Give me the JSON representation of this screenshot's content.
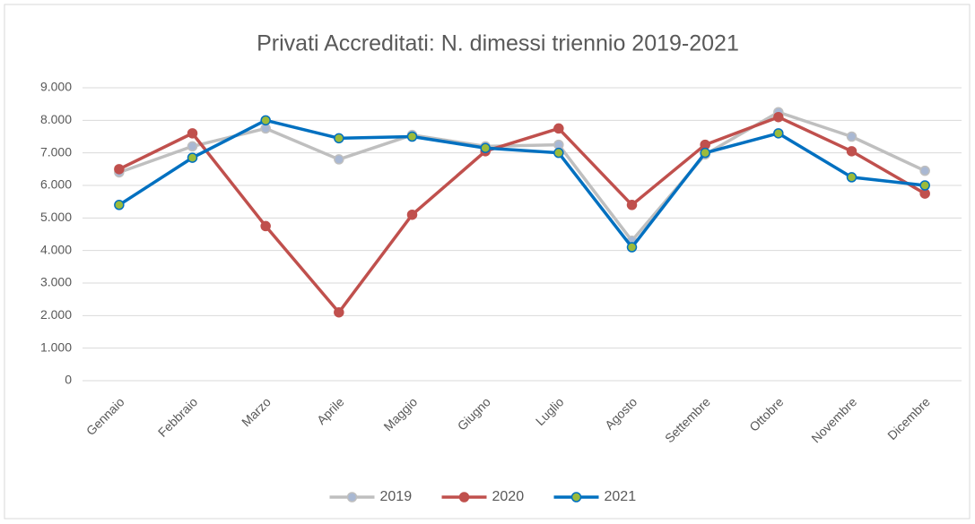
{
  "chart_data": {
    "type": "line",
    "title": "Privati Accreditati: N. dimessi triennio 2019-2021",
    "categories": [
      "Gennaio",
      "Febbraio",
      "Marzo",
      "Aprile",
      "Maggio",
      "Giugno",
      "Luglio",
      "Agosto",
      "Settembre",
      "Ottobre",
      "Novembre",
      "Dicembre"
    ],
    "series": [
      {
        "name": "2019",
        "color": "#bfbfbf",
        "marker_color": "#a9b8d3",
        "values": [
          6400,
          7200,
          7750,
          6800,
          7550,
          7200,
          7250,
          4300,
          6950,
          8250,
          7500,
          6450
        ]
      },
      {
        "name": "2020",
        "color": "#c0504d",
        "marker_color": "#c0504d",
        "values": [
          6500,
          7600,
          4750,
          2100,
          5100,
          7050,
          7750,
          5400,
          7250,
          8100,
          7050,
          5750
        ]
      },
      {
        "name": "2021",
        "color": "#0070c0",
        "marker_color": "#9bbb3b",
        "values": [
          5400,
          6850,
          8000,
          7450,
          7500,
          7150,
          7000,
          4100,
          7000,
          7600,
          6250,
          6000
        ]
      }
    ],
    "ylim": [
      0,
      9000
    ],
    "yticks": [
      0,
      {
        "value": 1000,
        "label": "1.000"
      },
      {
        "value": 2000,
        "label": "2.000"
      },
      {
        "value": 3000,
        "label": "3.000"
      },
      {
        "value": 4000,
        "label": "4.000"
      },
      {
        "value": 5000,
        "label": "5.000"
      },
      {
        "value": 6000,
        "label": "6.000"
      },
      {
        "value": 7000,
        "label": "7.000"
      },
      {
        "value": 8000,
        "label": "8.000"
      },
      {
        "value": 9000,
        "label": "9.000"
      }
    ],
    "grid": true,
    "legend": "bottom"
  }
}
